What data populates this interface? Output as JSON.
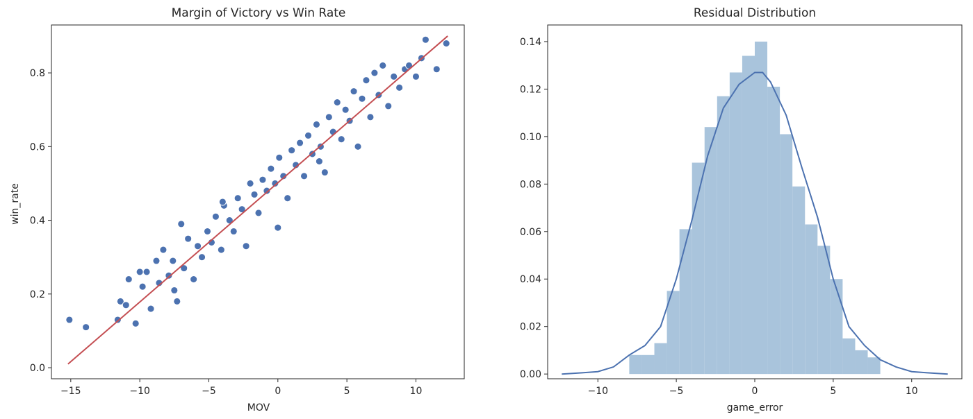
{
  "chart_data": [
    {
      "type": "scatter",
      "title": "Margin of Victory vs Win Rate",
      "xlabel": "MOV",
      "ylabel": "win_rate",
      "xlim": [
        -16.4,
        13.5
      ],
      "ylim": [
        -0.03,
        0.93
      ],
      "xticks": [
        -15,
        -10,
        -5,
        0,
        5,
        10
      ],
      "yticks": [
        0.0,
        0.2,
        0.4,
        0.6,
        0.8
      ],
      "x_tick_labels": [
        "−15",
        "−10",
        "−5",
        "0",
        "5",
        "10"
      ],
      "y_tick_labels": [
        "0.0",
        "0.2",
        "0.4",
        "0.6",
        "0.8"
      ],
      "grid": false,
      "point_color": "#4c72b0",
      "point_edge_color": "#ffffff",
      "points": [
        [
          -15.1,
          0.13
        ],
        [
          -13.9,
          0.11
        ],
        [
          -11.6,
          0.13
        ],
        [
          -11.4,
          0.18
        ],
        [
          -11.0,
          0.17
        ],
        [
          -10.8,
          0.24
        ],
        [
          -10.3,
          0.12
        ],
        [
          -10.0,
          0.26
        ],
        [
          -9.8,
          0.22
        ],
        [
          -9.5,
          0.26
        ],
        [
          -9.2,
          0.16
        ],
        [
          -8.8,
          0.29
        ],
        [
          -8.6,
          0.23
        ],
        [
          -8.3,
          0.32
        ],
        [
          -7.9,
          0.25
        ],
        [
          -7.6,
          0.29
        ],
        [
          -7.3,
          0.18
        ],
        [
          -7.0,
          0.39
        ],
        [
          -6.8,
          0.27
        ],
        [
          -6.5,
          0.35
        ],
        [
          -6.1,
          0.24
        ],
        [
          -5.8,
          0.33
        ],
        [
          -5.5,
          0.3
        ],
        [
          -5.1,
          0.37
        ],
        [
          -4.8,
          0.34
        ],
        [
          -4.5,
          0.41
        ],
        [
          -4.1,
          0.32
        ],
        [
          -3.9,
          0.44
        ],
        [
          -3.5,
          0.4
        ],
        [
          -3.2,
          0.37
        ],
        [
          -2.9,
          0.46
        ],
        [
          -2.6,
          0.43
        ],
        [
          -2.3,
          0.33
        ],
        [
          -2.0,
          0.5
        ],
        [
          -1.7,
          0.47
        ],
        [
          -1.4,
          0.42
        ],
        [
          -1.1,
          0.51
        ],
        [
          -0.8,
          0.48
        ],
        [
          -0.5,
          0.54
        ],
        [
          -0.2,
          0.5
        ],
        [
          0.1,
          0.57
        ],
        [
          0.4,
          0.52
        ],
        [
          0.7,
          0.46
        ],
        [
          1.0,
          0.59
        ],
        [
          1.3,
          0.55
        ],
        [
          1.6,
          0.61
        ],
        [
          1.9,
          0.52
        ],
        [
          2.2,
          0.63
        ],
        [
          2.5,
          0.58
        ],
        [
          2.8,
          0.66
        ],
        [
          3.1,
          0.6
        ],
        [
          3.4,
          0.53
        ],
        [
          3.7,
          0.68
        ],
        [
          4.0,
          0.64
        ],
        [
          4.3,
          0.72
        ],
        [
          4.6,
          0.62
        ],
        [
          4.9,
          0.7
        ],
        [
          5.2,
          0.67
        ],
        [
          5.5,
          0.75
        ],
        [
          5.8,
          0.6
        ],
        [
          6.1,
          0.73
        ],
        [
          6.4,
          0.78
        ],
        [
          6.7,
          0.68
        ],
        [
          7.0,
          0.8
        ],
        [
          7.3,
          0.74
        ],
        [
          7.6,
          0.82
        ],
        [
          8.0,
          0.71
        ],
        [
          8.4,
          0.79
        ],
        [
          8.8,
          0.76
        ],
        [
          9.2,
          0.81
        ],
        [
          9.5,
          0.82
        ],
        [
          10.0,
          0.79
        ],
        [
          10.4,
          0.84
        ],
        [
          10.7,
          0.89
        ],
        [
          11.5,
          0.81
        ],
        [
          12.2,
          0.88
        ],
        [
          0.0,
          0.38
        ],
        [
          -4.0,
          0.45
        ],
        [
          3.0,
          0.56
        ],
        [
          -7.5,
          0.21
        ]
      ],
      "regression_line": {
        "color": "#c44e52",
        "x": [
          -15.2,
          12.3
        ],
        "y": [
          0.01,
          0.9
        ]
      }
    },
    {
      "type": "histogram",
      "title": "Residual Distribution",
      "xlabel": "game_error",
      "ylabel": "",
      "xlim": [
        -13.2,
        13.2
      ],
      "ylim": [
        -0.002,
        0.147
      ],
      "xticks": [
        -10,
        -5,
        0,
        5,
        10
      ],
      "yticks": [
        0.0,
        0.02,
        0.04,
        0.06,
        0.08,
        0.1,
        0.12,
        0.14
      ],
      "x_tick_labels": [
        "−10",
        "−5",
        "0",
        "5",
        "10"
      ],
      "y_tick_labels": [
        "0.00",
        "0.02",
        "0.04",
        "0.06",
        "0.08",
        "0.10",
        "0.12",
        "0.14"
      ],
      "grid": false,
      "bar_color": "#a9c4dc",
      "kde_color": "#4c72b0",
      "bins": [
        [
          -8.0,
          -7.2,
          0.008
        ],
        [
          -7.2,
          -6.4,
          0.008
        ],
        [
          -6.4,
          -5.6,
          0.013
        ],
        [
          -5.6,
          -4.8,
          0.035
        ],
        [
          -4.8,
          -4.0,
          0.061
        ],
        [
          -4.0,
          -3.2,
          0.089
        ],
        [
          -3.2,
          -2.4,
          0.104
        ],
        [
          -2.4,
          -1.6,
          0.117
        ],
        [
          -1.6,
          -0.8,
          0.127
        ],
        [
          -0.8,
          0.0,
          0.134
        ],
        [
          0.0,
          0.8,
          0.14
        ],
        [
          0.8,
          1.6,
          0.121
        ],
        [
          1.6,
          2.4,
          0.101
        ],
        [
          2.4,
          3.2,
          0.079
        ],
        [
          3.2,
          4.0,
          0.063
        ],
        [
          4.0,
          4.8,
          0.054
        ],
        [
          4.8,
          5.6,
          0.04
        ],
        [
          5.6,
          6.4,
          0.015
        ],
        [
          6.4,
          7.2,
          0.01
        ],
        [
          7.2,
          8.0,
          0.007
        ]
      ],
      "kde": [
        [
          -12.3,
          0.0
        ],
        [
          -11.0,
          0.0005
        ],
        [
          -10.0,
          0.001
        ],
        [
          -9.0,
          0.003
        ],
        [
          -8.0,
          0.008
        ],
        [
          -7.0,
          0.012
        ],
        [
          -6.0,
          0.02
        ],
        [
          -5.0,
          0.04
        ],
        [
          -4.0,
          0.065
        ],
        [
          -3.0,
          0.092
        ],
        [
          -2.0,
          0.112
        ],
        [
          -1.0,
          0.122
        ],
        [
          0.0,
          0.127
        ],
        [
          0.5,
          0.127
        ],
        [
          1.0,
          0.123
        ],
        [
          2.0,
          0.109
        ],
        [
          3.0,
          0.087
        ],
        [
          4.0,
          0.066
        ],
        [
          5.0,
          0.04
        ],
        [
          6.0,
          0.02
        ],
        [
          7.0,
          0.012
        ],
        [
          8.0,
          0.006
        ],
        [
          9.0,
          0.003
        ],
        [
          10.0,
          0.001
        ],
        [
          11.0,
          0.0005
        ],
        [
          12.3,
          0.0
        ]
      ]
    }
  ]
}
